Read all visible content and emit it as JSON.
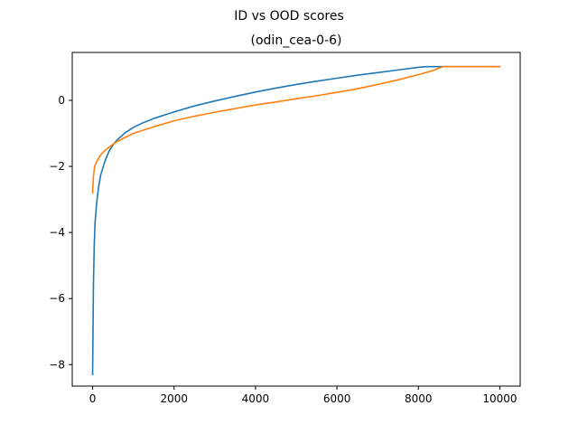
{
  "chart_data": {
    "type": "line",
    "title": "ID vs OOD scores",
    "subtitle": "(odin_cea-0-6)",
    "xlabel": "",
    "ylabel": "",
    "xlim": [
      -500,
      10500
    ],
    "ylim": [
      -8.65,
      1.45
    ],
    "xticks": [
      0,
      2000,
      4000,
      6000,
      8000,
      10000
    ],
    "xtick_labels": [
      "0",
      "2000",
      "4000",
      "6000",
      "8000",
      "10000"
    ],
    "yticks": [
      -8,
      -6,
      -4,
      -2,
      0
    ],
    "ytick_labels": [
      "−8",
      "−6",
      "−4",
      "−2",
      "0"
    ],
    "grid": false,
    "legend": "none",
    "series": [
      {
        "color": "#1f77b4",
        "x": [
          0,
          10,
          20,
          40,
          60,
          100,
          150,
          200,
          300,
          400,
          500,
          600,
          800,
          1000,
          1200,
          1500,
          2000,
          2500,
          3000,
          3500,
          4000,
          4500,
          5000,
          5500,
          6000,
          6500,
          7000,
          7500,
          8000,
          8200,
          8500,
          9000,
          9500,
          10000
        ],
        "y": [
          -8.3,
          -7.0,
          -5.6,
          -4.4,
          -3.7,
          -3.1,
          -2.6,
          -2.25,
          -1.85,
          -1.55,
          -1.35,
          -1.2,
          -0.98,
          -0.82,
          -0.7,
          -0.55,
          -0.35,
          -0.17,
          -0.02,
          0.12,
          0.25,
          0.37,
          0.48,
          0.58,
          0.67,
          0.76,
          0.84,
          0.92,
          1.0,
          1.02,
          1.02,
          1.02,
          1.02,
          1.02
        ]
      },
      {
        "color": "#ff7f0e",
        "x": [
          0,
          20,
          50,
          100,
          150,
          200,
          300,
          400,
          500,
          600,
          800,
          1000,
          1200,
          1500,
          2000,
          2500,
          3000,
          3500,
          4000,
          4500,
          5000,
          5500,
          6000,
          6500,
          7000,
          7500,
          8000,
          8300,
          8600,
          9000,
          9500,
          10000
        ],
        "y": [
          -2.8,
          -2.3,
          -2.0,
          -1.85,
          -1.75,
          -1.65,
          -1.52,
          -1.42,
          -1.33,
          -1.25,
          -1.12,
          -1.0,
          -0.92,
          -0.8,
          -0.62,
          -0.48,
          -0.36,
          -0.25,
          -0.14,
          -0.05,
          0.05,
          0.14,
          0.24,
          0.35,
          0.48,
          0.62,
          0.78,
          0.88,
          1.02,
          1.02,
          1.02,
          1.02
        ]
      }
    ]
  }
}
